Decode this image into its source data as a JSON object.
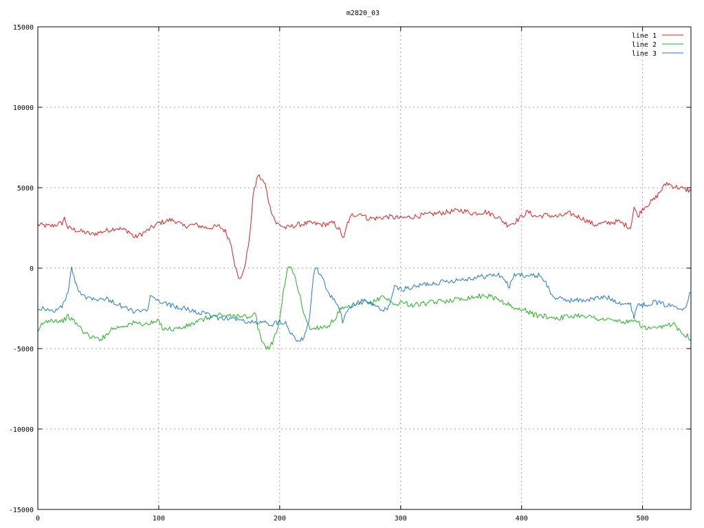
{
  "chart_data": {
    "type": "line",
    "title": "m2820_03",
    "xlabel": "",
    "ylabel": "",
    "xlim": [
      0,
      540
    ],
    "ylim": [
      -15000,
      15000
    ],
    "x_ticks": [
      0,
      100,
      200,
      300,
      400,
      500
    ],
    "y_ticks": [
      -15000,
      -10000,
      -5000,
      0,
      5000,
      10000,
      15000
    ],
    "grid": true,
    "legend_position": "top-right",
    "series": [
      {
        "name": "line 1",
        "color": "#e41a1c",
        "points": [
          [
            0,
            2700
          ],
          [
            10,
            2600
          ],
          [
            20,
            2800
          ],
          [
            22,
            3100
          ],
          [
            25,
            2500
          ],
          [
            35,
            2300
          ],
          [
            45,
            2100
          ],
          [
            55,
            2300
          ],
          [
            65,
            2500
          ],
          [
            75,
            2300
          ],
          [
            80,
            1900
          ],
          [
            90,
            2300
          ],
          [
            100,
            2800
          ],
          [
            110,
            3000
          ],
          [
            115,
            2900
          ],
          [
            120,
            2600
          ],
          [
            130,
            2700
          ],
          [
            140,
            2500
          ],
          [
            150,
            2600
          ],
          [
            155,
            2300
          ],
          [
            160,
            1500
          ],
          [
            163,
            200
          ],
          [
            166,
            -700
          ],
          [
            170,
            -300
          ],
          [
            175,
            1800
          ],
          [
            178,
            4500
          ],
          [
            182,
            5800
          ],
          [
            188,
            5200
          ],
          [
            192,
            3800
          ],
          [
            197,
            2800
          ],
          [
            205,
            2500
          ],
          [
            215,
            2700
          ],
          [
            225,
            2800
          ],
          [
            235,
            2700
          ],
          [
            245,
            2800
          ],
          [
            250,
            2300
          ],
          [
            253,
            1800
          ],
          [
            256,
            2800
          ],
          [
            260,
            3300
          ],
          [
            268,
            3400
          ],
          [
            272,
            3100
          ],
          [
            280,
            3100
          ],
          [
            290,
            3200
          ],
          [
            300,
            3100
          ],
          [
            310,
            3200
          ],
          [
            320,
            3300
          ],
          [
            330,
            3400
          ],
          [
            340,
            3500
          ],
          [
            350,
            3600
          ],
          [
            360,
            3400
          ],
          [
            370,
            3500
          ],
          [
            380,
            3200
          ],
          [
            388,
            2700
          ],
          [
            393,
            2800
          ],
          [
            400,
            3200
          ],
          [
            405,
            3500
          ],
          [
            412,
            3200
          ],
          [
            420,
            3300
          ],
          [
            430,
            3200
          ],
          [
            440,
            3400
          ],
          [
            450,
            3100
          ],
          [
            455,
            2900
          ],
          [
            460,
            2700
          ],
          [
            470,
            2800
          ],
          [
            480,
            2900
          ],
          [
            488,
            2600
          ],
          [
            490,
            2500
          ],
          [
            493,
            3800
          ],
          [
            496,
            3200
          ],
          [
            500,
            3700
          ],
          [
            505,
            4000
          ],
          [
            510,
            4300
          ],
          [
            515,
            4800
          ],
          [
            520,
            5300
          ],
          [
            525,
            5100
          ],
          [
            530,
            5000
          ],
          [
            535,
            4900
          ],
          [
            540,
            4800
          ]
        ]
      },
      {
        "name": "line 2",
        "color": "#1bb31b",
        "points": [
          [
            0,
            -4100
          ],
          [
            3,
            -3500
          ],
          [
            10,
            -3200
          ],
          [
            20,
            -3300
          ],
          [
            25,
            -3000
          ],
          [
            30,
            -3300
          ],
          [
            35,
            -3700
          ],
          [
            40,
            -4100
          ],
          [
            45,
            -4300
          ],
          [
            50,
            -4400
          ],
          [
            55,
            -4300
          ],
          [
            60,
            -3800
          ],
          [
            65,
            -3700
          ],
          [
            70,
            -3600
          ],
          [
            80,
            -3400
          ],
          [
            90,
            -3500
          ],
          [
            100,
            -3300
          ],
          [
            103,
            -3700
          ],
          [
            110,
            -3800
          ],
          [
            120,
            -3700
          ],
          [
            130,
            -3400
          ],
          [
            140,
            -3100
          ],
          [
            150,
            -2900
          ],
          [
            160,
            -3000
          ],
          [
            170,
            -2900
          ],
          [
            175,
            -3200
          ],
          [
            180,
            -2800
          ],
          [
            182,
            -3700
          ],
          [
            185,
            -4500
          ],
          [
            190,
            -5000
          ],
          [
            195,
            -4500
          ],
          [
            200,
            -3200
          ],
          [
            203,
            -1500
          ],
          [
            206,
            -100
          ],
          [
            210,
            0
          ],
          [
            215,
            -1200
          ],
          [
            220,
            -2800
          ],
          [
            225,
            -3800
          ],
          [
            230,
            -3700
          ],
          [
            240,
            -3600
          ],
          [
            245,
            -3200
          ],
          [
            250,
            -2600
          ],
          [
            255,
            -2500
          ],
          [
            260,
            -2400
          ],
          [
            265,
            -2300
          ],
          [
            270,
            -2100
          ],
          [
            275,
            -2200
          ],
          [
            280,
            -2000
          ],
          [
            285,
            -1700
          ],
          [
            290,
            -2000
          ],
          [
            295,
            -2300
          ],
          [
            300,
            -2100
          ],
          [
            310,
            -2300
          ],
          [
            320,
            -2200
          ],
          [
            330,
            -2100
          ],
          [
            340,
            -2000
          ],
          [
            350,
            -1900
          ],
          [
            360,
            -1800
          ],
          [
            370,
            -1700
          ],
          [
            380,
            -1900
          ],
          [
            390,
            -2300
          ],
          [
            395,
            -2600
          ],
          [
            400,
            -2500
          ],
          [
            410,
            -2900
          ],
          [
            420,
            -3000
          ],
          [
            430,
            -3100
          ],
          [
            440,
            -3000
          ],
          [
            450,
            -2900
          ],
          [
            460,
            -3100
          ],
          [
            470,
            -3200
          ],
          [
            480,
            -3300
          ],
          [
            490,
            -3400
          ],
          [
            495,
            -3200
          ],
          [
            500,
            -3700
          ],
          [
            510,
            -3800
          ],
          [
            520,
            -3600
          ],
          [
            525,
            -3400
          ],
          [
            530,
            -3800
          ],
          [
            535,
            -4100
          ],
          [
            540,
            -4400
          ]
        ]
      },
      {
        "name": "line 3",
        "color": "#1f78d0",
        "points": [
          [
            0,
            -2500
          ],
          [
            5,
            -2500
          ],
          [
            10,
            -2700
          ],
          [
            15,
            -2600
          ],
          [
            20,
            -2400
          ],
          [
            25,
            -1500
          ],
          [
            28,
            0
          ],
          [
            31,
            -900
          ],
          [
            35,
            -1500
          ],
          [
            40,
            -1800
          ],
          [
            50,
            -1900
          ],
          [
            55,
            -1900
          ],
          [
            60,
            -2000
          ],
          [
            70,
            -2400
          ],
          [
            80,
            -2700
          ],
          [
            90,
            -2700
          ],
          [
            93,
            -1800
          ],
          [
            100,
            -2100
          ],
          [
            110,
            -2300
          ],
          [
            120,
            -2500
          ],
          [
            130,
            -2700
          ],
          [
            140,
            -2900
          ],
          [
            150,
            -3100
          ],
          [
            160,
            -3100
          ],
          [
            170,
            -3300
          ],
          [
            180,
            -3400
          ],
          [
            190,
            -3400
          ],
          [
            195,
            -3500
          ],
          [
            200,
            -3300
          ],
          [
            205,
            -3400
          ],
          [
            210,
            -4100
          ],
          [
            215,
            -4500
          ],
          [
            220,
            -4300
          ],
          [
            225,
            -3000
          ],
          [
            228,
            -300
          ],
          [
            230,
            0
          ],
          [
            235,
            -600
          ],
          [
            240,
            -1500
          ],
          [
            245,
            -2000
          ],
          [
            248,
            -2300
          ],
          [
            252,
            -3300
          ],
          [
            256,
            -2600
          ],
          [
            260,
            -2300
          ],
          [
            270,
            -2000
          ],
          [
            280,
            -2400
          ],
          [
            285,
            -2700
          ],
          [
            290,
            -2400
          ],
          [
            295,
            -1200
          ],
          [
            300,
            -1300
          ],
          [
            310,
            -1200
          ],
          [
            320,
            -1000
          ],
          [
            330,
            -900
          ],
          [
            340,
            -800
          ],
          [
            350,
            -700
          ],
          [
            360,
            -600
          ],
          [
            370,
            -500
          ],
          [
            380,
            -400
          ],
          [
            385,
            -600
          ],
          [
            390,
            -1200
          ],
          [
            393,
            -500
          ],
          [
            400,
            -400
          ],
          [
            410,
            -500
          ],
          [
            415,
            -400
          ],
          [
            420,
            -900
          ],
          [
            425,
            -1700
          ],
          [
            430,
            -1900
          ],
          [
            440,
            -2000
          ],
          [
            450,
            -2000
          ],
          [
            460,
            -1900
          ],
          [
            470,
            -1800
          ],
          [
            480,
            -2100
          ],
          [
            490,
            -2300
          ],
          [
            493,
            -3000
          ],
          [
            496,
            -2200
          ],
          [
            500,
            -2300
          ],
          [
            510,
            -2100
          ],
          [
            520,
            -2300
          ],
          [
            530,
            -2400
          ],
          [
            535,
            -2500
          ],
          [
            538,
            -1800
          ],
          [
            540,
            -1500
          ]
        ]
      }
    ]
  }
}
